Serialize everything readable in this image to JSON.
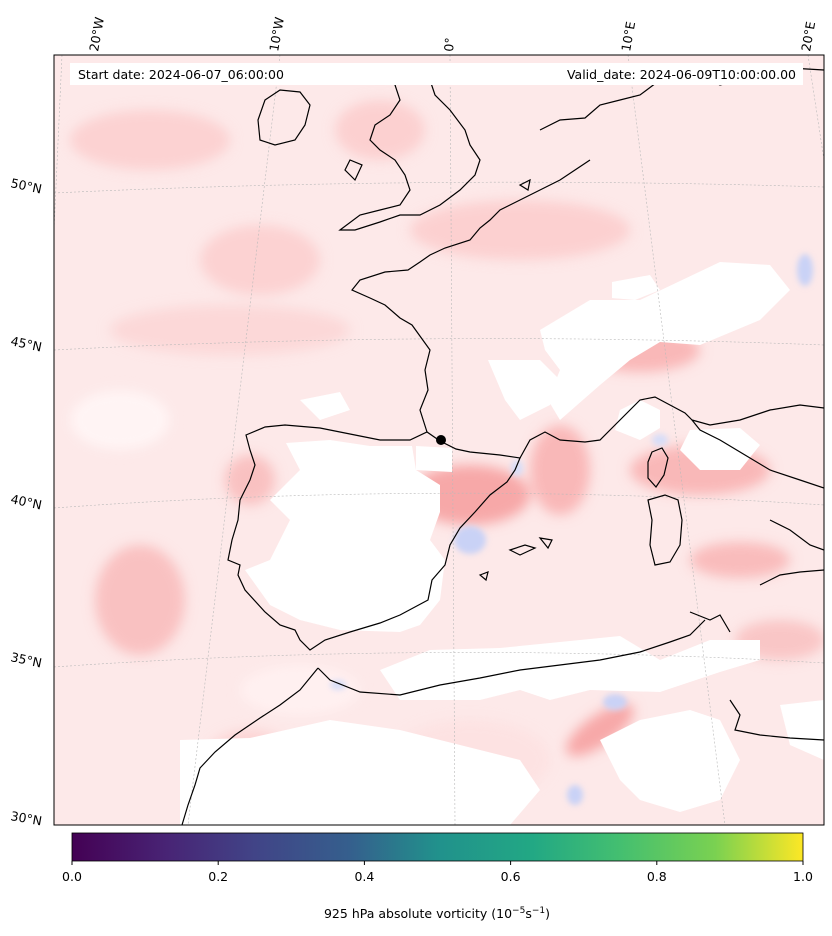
{
  "header": {
    "start_date": "Start date: 2024-06-07_06:00:00",
    "valid_date": "Valid_date: 2024-06-09T10:00:00.00"
  },
  "lon_labels": [
    "20°W",
    "10°W",
    "0°",
    "10°E",
    "20°E"
  ],
  "lat_labels": [
    "50°N",
    "45°N",
    "40°N",
    "35°N",
    "30°N"
  ],
  "colorbar": {
    "ticks": [
      "0.0",
      "0.2",
      "0.4",
      "0.6",
      "0.8",
      "1.0"
    ],
    "range": [
      0.0,
      1.0
    ],
    "colormap": "viridis",
    "caption_text": "925 hPa absolute vorticity (10",
    "caption_exp1": "−5",
    "caption_mid": "s",
    "caption_exp2": "−1",
    "caption_end": ")"
  },
  "colors": {
    "field_pos_light": "#fde6e6",
    "field_pos_mid": "#fbc9c9",
    "field_pos_strong": "#f59a9a",
    "field_neg": "#d5dcf7",
    "coastline": "#000000",
    "marker": "#000000"
  }
}
